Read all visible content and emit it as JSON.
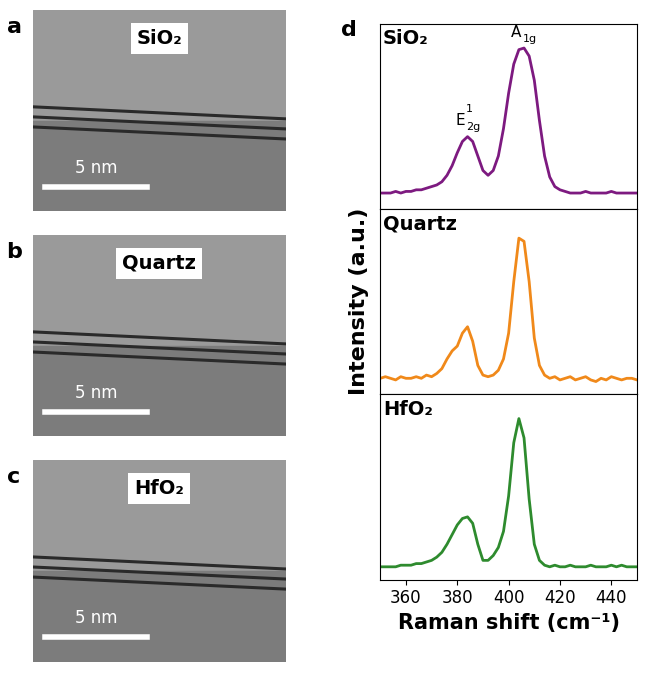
{
  "panels": [
    {
      "panel": "a",
      "label": "SiO₂",
      "scale_bar": "5 nm"
    },
    {
      "panel": "b",
      "label": "Quartz",
      "scale_bar": "5 nm"
    },
    {
      "panel": "c",
      "label": "HfO₂",
      "scale_bar": "5 nm"
    }
  ],
  "spectra_panel": "d",
  "chart_data": [
    {
      "type": "line",
      "title": "SiO₂",
      "color": "#7d1a80",
      "x": [
        350,
        352,
        354,
        356,
        358,
        360,
        362,
        364,
        366,
        368,
        370,
        372,
        374,
        376,
        378,
        380,
        382,
        384,
        386,
        388,
        390,
        392,
        394,
        396,
        398,
        400,
        402,
        404,
        406,
        408,
        410,
        412,
        414,
        416,
        418,
        420,
        422,
        424,
        426,
        428,
        430,
        432,
        434,
        436,
        438,
        440,
        442,
        444,
        446,
        448,
        450
      ],
      "values": [
        0.1,
        0.1,
        0.1,
        0.11,
        0.1,
        0.11,
        0.11,
        0.12,
        0.12,
        0.13,
        0.14,
        0.15,
        0.17,
        0.21,
        0.27,
        0.35,
        0.42,
        0.45,
        0.42,
        0.33,
        0.24,
        0.21,
        0.24,
        0.33,
        0.5,
        0.72,
        0.9,
        0.99,
        1.0,
        0.95,
        0.8,
        0.55,
        0.33,
        0.2,
        0.14,
        0.12,
        0.11,
        0.1,
        0.1,
        0.1,
        0.11,
        0.1,
        0.1,
        0.1,
        0.1,
        0.11,
        0.1,
        0.1,
        0.1,
        0.1,
        0.1
      ],
      "xlim": [
        350,
        450
      ],
      "ylim": [
        0,
        1.15
      ],
      "xticks": [
        360,
        380,
        400,
        420,
        440
      ],
      "yticks": [],
      "tick_labels": false,
      "annotations": [
        {
          "text": "E",
          "superscript": "1",
          "subscript": "2g",
          "x": 384
        },
        {
          "text": "A",
          "subscript": "1g",
          "x": 406
        }
      ]
    },
    {
      "type": "line",
      "title": "Quartz",
      "color": "#f0891a",
      "y_label": "Intensity (a.u.)",
      "x": [
        350,
        352,
        354,
        356,
        358,
        360,
        362,
        364,
        366,
        368,
        370,
        372,
        374,
        376,
        378,
        380,
        382,
        384,
        386,
        388,
        390,
        392,
        394,
        396,
        398,
        400,
        402,
        404,
        406,
        408,
        410,
        412,
        414,
        416,
        418,
        420,
        422,
        424,
        426,
        428,
        430,
        432,
        434,
        436,
        438,
        440,
        442,
        444,
        446,
        448,
        450
      ],
      "values": [
        0.1,
        0.11,
        0.1,
        0.09,
        0.11,
        0.1,
        0.1,
        0.11,
        0.1,
        0.12,
        0.11,
        0.13,
        0.16,
        0.22,
        0.27,
        0.3,
        0.38,
        0.42,
        0.33,
        0.18,
        0.12,
        0.11,
        0.12,
        0.15,
        0.22,
        0.38,
        0.7,
        0.97,
        0.95,
        0.7,
        0.35,
        0.18,
        0.12,
        0.1,
        0.11,
        0.09,
        0.1,
        0.11,
        0.09,
        0.1,
        0.11,
        0.09,
        0.08,
        0.1,
        0.09,
        0.11,
        0.1,
        0.09,
        0.1,
        0.1,
        0.09
      ],
      "xlim": [
        350,
        450
      ],
      "ylim": [
        0,
        1.15
      ],
      "xticks": [
        360,
        380,
        400,
        420,
        440
      ],
      "yticks": [],
      "tick_labels": false
    },
    {
      "type": "line",
      "title": "HfO₂",
      "color": "#2e8b2e",
      "x_label": "Raman shift (cm⁻¹)",
      "x": [
        350,
        352,
        354,
        356,
        358,
        360,
        362,
        364,
        366,
        368,
        370,
        372,
        374,
        376,
        378,
        380,
        382,
        384,
        386,
        388,
        390,
        392,
        394,
        396,
        398,
        400,
        402,
        404,
        406,
        408,
        410,
        412,
        414,
        416,
        418,
        420,
        422,
        424,
        426,
        428,
        430,
        432,
        434,
        436,
        438,
        440,
        442,
        444,
        446,
        448,
        450
      ],
      "values": [
        0.08,
        0.08,
        0.08,
        0.08,
        0.09,
        0.09,
        0.09,
        0.1,
        0.1,
        0.11,
        0.12,
        0.14,
        0.17,
        0.22,
        0.28,
        0.34,
        0.38,
        0.39,
        0.35,
        0.22,
        0.12,
        0.12,
        0.15,
        0.2,
        0.3,
        0.52,
        0.85,
        1.0,
        0.88,
        0.5,
        0.22,
        0.12,
        0.09,
        0.08,
        0.09,
        0.08,
        0.08,
        0.09,
        0.08,
        0.08,
        0.08,
        0.09,
        0.08,
        0.08,
        0.08,
        0.09,
        0.08,
        0.09,
        0.08,
        0.08,
        0.08
      ],
      "xlim": [
        350,
        450
      ],
      "ylim": [
        0,
        1.15
      ],
      "xticks": [
        360,
        380,
        400,
        420,
        440
      ],
      "yticks": [],
      "tick_labels": "x"
    }
  ]
}
